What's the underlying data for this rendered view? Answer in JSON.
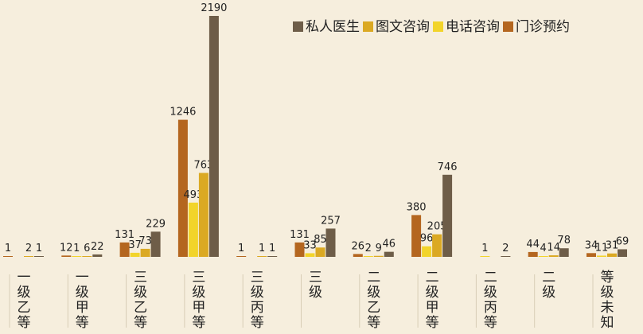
{
  "chart_data": {
    "type": "bar",
    "categories": [
      "一级乙等",
      "一级甲等",
      "三级乙等",
      "三级甲等",
      "三级丙等",
      "三级",
      "二级乙等",
      "二级甲等",
      "二级丙等",
      "二级",
      "等级未知"
    ],
    "series": [
      {
        "name": "门诊预约",
        "color": "#b4661f",
        "values": [
          1,
          12,
          131,
          1246,
          1,
          131,
          26,
          380,
          null,
          44,
          34
        ]
      },
      {
        "name": "电话咨询",
        "color": "#f2d42a",
        "values": [
          null,
          1,
          37,
          493,
          null,
          33,
          2,
          96,
          1,
          4,
          11
        ]
      },
      {
        "name": "图文咨询",
        "color": "#dba923",
        "values": [
          2,
          6,
          73,
          763,
          1,
          85,
          9,
          205,
          null,
          14,
          31
        ]
      },
      {
        "name": "私人医生",
        "color": "#6e5d48",
        "values": [
          1,
          22,
          229,
          2190,
          1,
          257,
          46,
          746,
          2,
          78,
          69
        ]
      }
    ],
    "legend_order": [
      3,
      2,
      1,
      0
    ]
  }
}
